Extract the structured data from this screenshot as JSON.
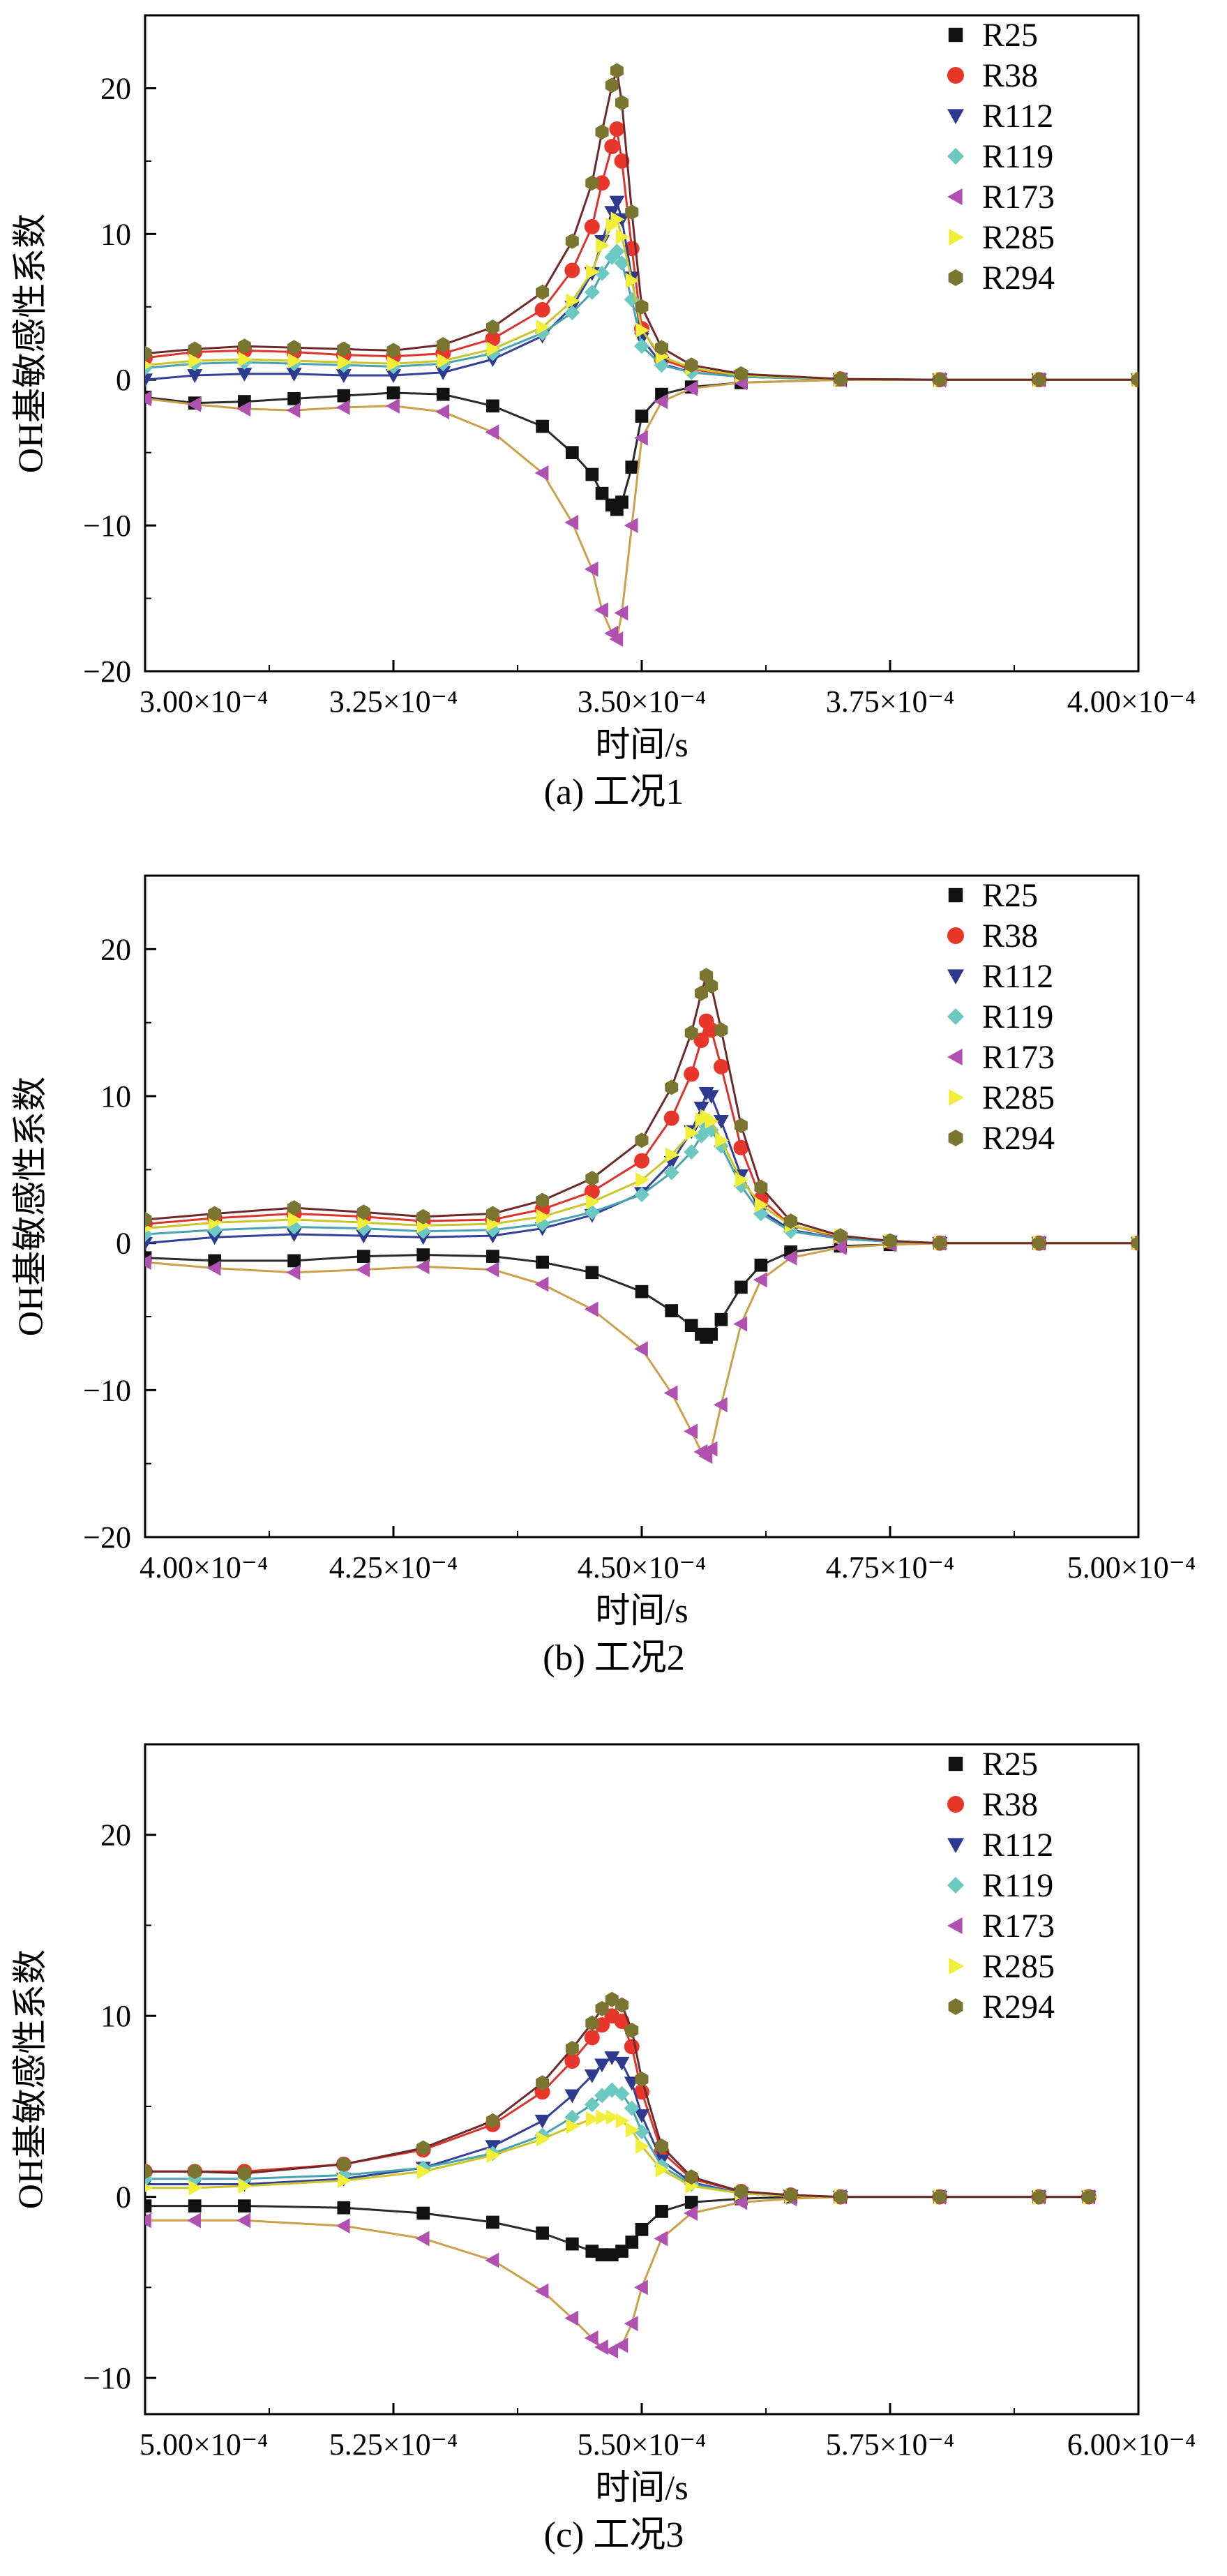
{
  "chart_data": [
    {
      "type": "line",
      "caption": "(a) 工况1",
      "xlabel": "时间/s",
      "ylabel": "OH基敏感性系数",
      "xlim": [
        0.0003,
        0.0004
      ],
      "ylim": [
        -20,
        25
      ],
      "x_ticks": [
        0.0003,
        0.000325,
        0.00035,
        0.000375,
        0.0004
      ],
      "x_tick_labels": [
        "3.00×10⁻⁴",
        "3.25×10⁻⁴",
        "3.50×10⁻⁴",
        "3.75×10⁻⁴",
        "4.00×10⁻⁴"
      ],
      "y_ticks": [
        -20,
        -10,
        0,
        10,
        20
      ],
      "y_tick_labels": [
        "−20",
        "−10",
        "0",
        "10",
        "20"
      ],
      "legend_position": "top-right",
      "grid": false,
      "x": [
        0.0003,
        0.000305,
        0.00031,
        0.000315,
        0.00032,
        0.000325,
        0.00033,
        0.000335,
        0.00034,
        0.000343,
        0.000345,
        0.000346,
        0.000347,
        0.0003475,
        0.000348,
        0.000349,
        0.00035,
        0.000352,
        0.000355,
        0.00036,
        0.00037,
        0.00038,
        0.00039,
        0.0004
      ],
      "series": [
        {
          "name": "R25",
          "values": [
            -1.2,
            -1.6,
            -1.5,
            -1.3,
            -1.1,
            -0.9,
            -1.0,
            -1.8,
            -3.2,
            -5.0,
            -6.5,
            -7.8,
            -8.6,
            -8.9,
            -8.4,
            -6.0,
            -2.5,
            -1.0,
            -0.5,
            -0.2,
            0,
            0,
            0,
            0
          ]
        },
        {
          "name": "R38",
          "values": [
            1.5,
            1.9,
            2.0,
            1.9,
            1.7,
            1.6,
            1.8,
            2.8,
            4.8,
            7.5,
            10.5,
            13.5,
            16.0,
            17.2,
            15.0,
            9.0,
            3.5,
            1.4,
            0.7,
            0.3,
            0.05,
            0,
            0,
            0
          ]
        },
        {
          "name": "R112",
          "values": [
            0.0,
            0.3,
            0.4,
            0.4,
            0.3,
            0.3,
            0.5,
            1.4,
            3.0,
            5.0,
            7.3,
            9.5,
            11.5,
            12.2,
            11.0,
            7.0,
            2.8,
            1.1,
            0.5,
            0.2,
            0.03,
            0,
            0,
            0
          ]
        },
        {
          "name": "R119",
          "values": [
            0.8,
            1.1,
            1.2,
            1.1,
            1.0,
            0.9,
            1.1,
            1.8,
            3.2,
            4.6,
            6.0,
            7.3,
            8.4,
            8.8,
            8.0,
            5.5,
            2.3,
            1.0,
            0.5,
            0.2,
            0.03,
            0,
            0,
            0
          ]
        },
        {
          "name": "R173",
          "values": [
            -1.3,
            -1.7,
            -2.0,
            -2.1,
            -1.9,
            -1.8,
            -2.2,
            -3.6,
            -6.4,
            -9.8,
            -13.0,
            -15.8,
            -17.4,
            -17.8,
            -16.0,
            -10.0,
            -4.0,
            -1.5,
            -0.6,
            -0.2,
            0,
            0,
            0,
            0
          ]
        },
        {
          "name": "R285",
          "values": [
            1.0,
            1.3,
            1.4,
            1.3,
            1.2,
            1.1,
            1.3,
            2.1,
            3.6,
            5.4,
            7.4,
            9.2,
            10.6,
            11.0,
            9.8,
            6.8,
            3.4,
            1.6,
            0.8,
            0.3,
            0.05,
            0,
            0,
            0
          ]
        },
        {
          "name": "R294",
          "values": [
            1.8,
            2.1,
            2.3,
            2.2,
            2.1,
            2.0,
            2.4,
            3.6,
            6.0,
            9.5,
            13.5,
            17.0,
            20.2,
            21.2,
            19.0,
            11.5,
            5.0,
            2.2,
            1.0,
            0.4,
            0.05,
            0,
            0,
            0
          ]
        }
      ]
    },
    {
      "type": "line",
      "caption": "(b) 工况2",
      "xlabel": "时间/s",
      "ylabel": "OH基敏感性系数",
      "xlim": [
        0.0004,
        0.0005
      ],
      "ylim": [
        -20,
        25
      ],
      "x_ticks": [
        0.0004,
        0.000425,
        0.00045,
        0.000475,
        0.0005
      ],
      "x_tick_labels": [
        "4.00×10⁻⁴",
        "4.25×10⁻⁴",
        "4.50×10⁻⁴",
        "4.75×10⁻⁴",
        "5.00×10⁻⁴"
      ],
      "y_ticks": [
        -20,
        -10,
        0,
        10,
        20
      ],
      "y_tick_labels": [
        "−20",
        "−10",
        "0",
        "10",
        "20"
      ],
      "legend_position": "top-right",
      "grid": false,
      "x": [
        0.0004,
        0.000407,
        0.000415,
        0.000422,
        0.000428,
        0.000435,
        0.00044,
        0.000445,
        0.00045,
        0.000453,
        0.000455,
        0.000456,
        0.0004565,
        0.000457,
        0.000458,
        0.00046,
        0.000462,
        0.000465,
        0.00047,
        0.000475,
        0.00048,
        0.00049,
        0.0005
      ],
      "series": [
        {
          "name": "R25",
          "values": [
            -1.0,
            -1.2,
            -1.2,
            -0.9,
            -0.8,
            -0.9,
            -1.3,
            -2.0,
            -3.3,
            -4.6,
            -5.6,
            -6.2,
            -6.4,
            -6.2,
            -5.2,
            -3.0,
            -1.5,
            -0.6,
            -0.2,
            -0.1,
            0,
            0,
            0
          ]
        },
        {
          "name": "R38",
          "values": [
            1.3,
            1.7,
            2.0,
            1.8,
            1.5,
            1.6,
            2.3,
            3.5,
            5.6,
            8.5,
            11.5,
            13.8,
            15.1,
            14.5,
            12.0,
            6.5,
            3.0,
            1.2,
            0.4,
            0.1,
            0,
            0,
            0
          ]
        },
        {
          "name": "R112",
          "values": [
            0.0,
            0.4,
            0.6,
            0.5,
            0.4,
            0.5,
            1.0,
            1.9,
            3.4,
            5.5,
            7.6,
            9.2,
            10.2,
            10.0,
            8.3,
            4.6,
            2.2,
            0.9,
            0.3,
            0.1,
            0,
            0,
            0
          ]
        },
        {
          "name": "R119",
          "values": [
            0.6,
            0.9,
            1.1,
            1.0,
            0.8,
            0.9,
            1.3,
            2.1,
            3.3,
            4.8,
            6.2,
            7.3,
            7.9,
            7.7,
            6.6,
            3.9,
            2.0,
            0.8,
            0.3,
            0.1,
            0,
            0,
            0
          ]
        },
        {
          "name": "R173",
          "values": [
            -1.3,
            -1.7,
            -2.0,
            -1.8,
            -1.6,
            -1.8,
            -2.8,
            -4.5,
            -7.2,
            -10.2,
            -12.8,
            -14.2,
            -14.5,
            -14.0,
            -11.0,
            -5.5,
            -2.5,
            -1.0,
            -0.3,
            -0.1,
            0,
            0,
            0
          ]
        },
        {
          "name": "R285",
          "values": [
            1.0,
            1.4,
            1.6,
            1.4,
            1.2,
            1.3,
            1.8,
            2.8,
            4.3,
            6.0,
            7.5,
            8.4,
            8.6,
            8.3,
            7.0,
            4.3,
            2.6,
            1.2,
            0.5,
            0.15,
            0,
            0,
            0
          ]
        },
        {
          "name": "R294",
          "values": [
            1.6,
            2.0,
            2.4,
            2.1,
            1.8,
            2.0,
            2.9,
            4.4,
            7.0,
            10.6,
            14.3,
            17.0,
            18.2,
            17.5,
            14.5,
            8.0,
            3.8,
            1.5,
            0.5,
            0.15,
            0,
            0,
            0
          ]
        }
      ]
    },
    {
      "type": "line",
      "caption": "(c) 工况3",
      "xlabel": "时间/s",
      "ylabel": "OH基敏感性系数",
      "xlim": [
        0.0005,
        0.0006
      ],
      "ylim": [
        -12,
        25
      ],
      "x_ticks": [
        0.0005,
        0.000525,
        0.00055,
        0.000575,
        0.0006
      ],
      "x_tick_labels": [
        "5.00×10⁻⁴",
        "5.25×10⁻⁴",
        "5.50×10⁻⁴",
        "5.75×10⁻⁴",
        "6.00×10⁻⁴"
      ],
      "y_ticks": [
        -10,
        0,
        10,
        20
      ],
      "y_tick_labels": [
        "−10",
        "0",
        "10",
        "20"
      ],
      "legend_position": "top-right",
      "grid": false,
      "x": [
        0.0005,
        0.000505,
        0.00051,
        0.00052,
        0.000528,
        0.000535,
        0.00054,
        0.000543,
        0.000545,
        0.000546,
        0.000547,
        0.000548,
        0.000549,
        0.00055,
        0.000552,
        0.000555,
        0.00056,
        0.000565,
        0.00057,
        0.00058,
        0.00059,
        0.000595
      ],
      "series": [
        {
          "name": "R25",
          "values": [
            -0.5,
            -0.5,
            -0.5,
            -0.6,
            -0.9,
            -1.4,
            -2.0,
            -2.6,
            -3.0,
            -3.2,
            -3.2,
            -3.0,
            -2.5,
            -1.8,
            -0.8,
            -0.3,
            -0.1,
            0,
            0,
            0,
            0,
            0
          ]
        },
        {
          "name": "R38",
          "values": [
            1.4,
            1.4,
            1.4,
            1.8,
            2.6,
            4.0,
            5.8,
            7.5,
            8.8,
            9.5,
            10.0,
            9.7,
            8.3,
            5.8,
            2.5,
            1.0,
            0.3,
            0.1,
            0,
            0,
            0,
            0
          ]
        },
        {
          "name": "R112",
          "values": [
            0.7,
            0.7,
            0.7,
            1.0,
            1.6,
            2.8,
            4.2,
            5.6,
            6.7,
            7.3,
            7.7,
            7.4,
            6.3,
            4.5,
            2.0,
            0.8,
            0.2,
            0.05,
            0,
            0,
            0,
            0
          ]
        },
        {
          "name": "R119",
          "values": [
            1.0,
            1.0,
            1.0,
            1.2,
            1.6,
            2.4,
            3.4,
            4.4,
            5.1,
            5.6,
            5.9,
            5.7,
            4.9,
            3.6,
            1.7,
            0.7,
            0.2,
            0.05,
            0,
            0,
            0,
            0
          ]
        },
        {
          "name": "R173",
          "values": [
            -1.3,
            -1.3,
            -1.3,
            -1.6,
            -2.3,
            -3.5,
            -5.2,
            -6.7,
            -7.8,
            -8.3,
            -8.5,
            -8.2,
            -7.0,
            -5.0,
            -2.3,
            -0.9,
            -0.3,
            -0.1,
            0,
            0,
            0,
            0
          ]
        },
        {
          "name": "R285",
          "values": [
            0.5,
            0.5,
            0.6,
            0.9,
            1.4,
            2.3,
            3.2,
            3.9,
            4.3,
            4.4,
            4.4,
            4.2,
            3.7,
            2.8,
            1.5,
            0.6,
            0.2,
            0.05,
            0,
            0,
            0,
            0
          ]
        },
        {
          "name": "R294",
          "values": [
            1.4,
            1.4,
            1.3,
            1.8,
            2.7,
            4.2,
            6.3,
            8.2,
            9.6,
            10.4,
            10.9,
            10.6,
            9.2,
            6.5,
            2.8,
            1.1,
            0.3,
            0.1,
            0,
            0,
            0,
            0
          ]
        }
      ]
    }
  ],
  "series_styles": [
    {
      "name": "R25",
      "marker": "square",
      "marker_color": "#111111",
      "line_color": "#2a2a2a"
    },
    {
      "name": "R38",
      "marker": "circle",
      "marker_color": "#e8362a",
      "line_color": "#d9352c"
    },
    {
      "name": "R112",
      "marker": "triangle-down",
      "marker_color": "#2e3a8f",
      "line_color": "#33409a"
    },
    {
      "name": "R119",
      "marker": "diamond",
      "marker_color": "#6cc9c2",
      "line_color": "#48a3b0"
    },
    {
      "name": "R173",
      "marker": "triangle-left",
      "marker_color": "#b050b0",
      "line_color": "#c9a14a"
    },
    {
      "name": "R285",
      "marker": "triangle-right",
      "marker_color": "#f2ef3a",
      "line_color": "#c9c52a"
    },
    {
      "name": "R294",
      "marker": "hexagon",
      "marker_color": "#7b7532",
      "line_color": "#6e2a2a"
    }
  ]
}
